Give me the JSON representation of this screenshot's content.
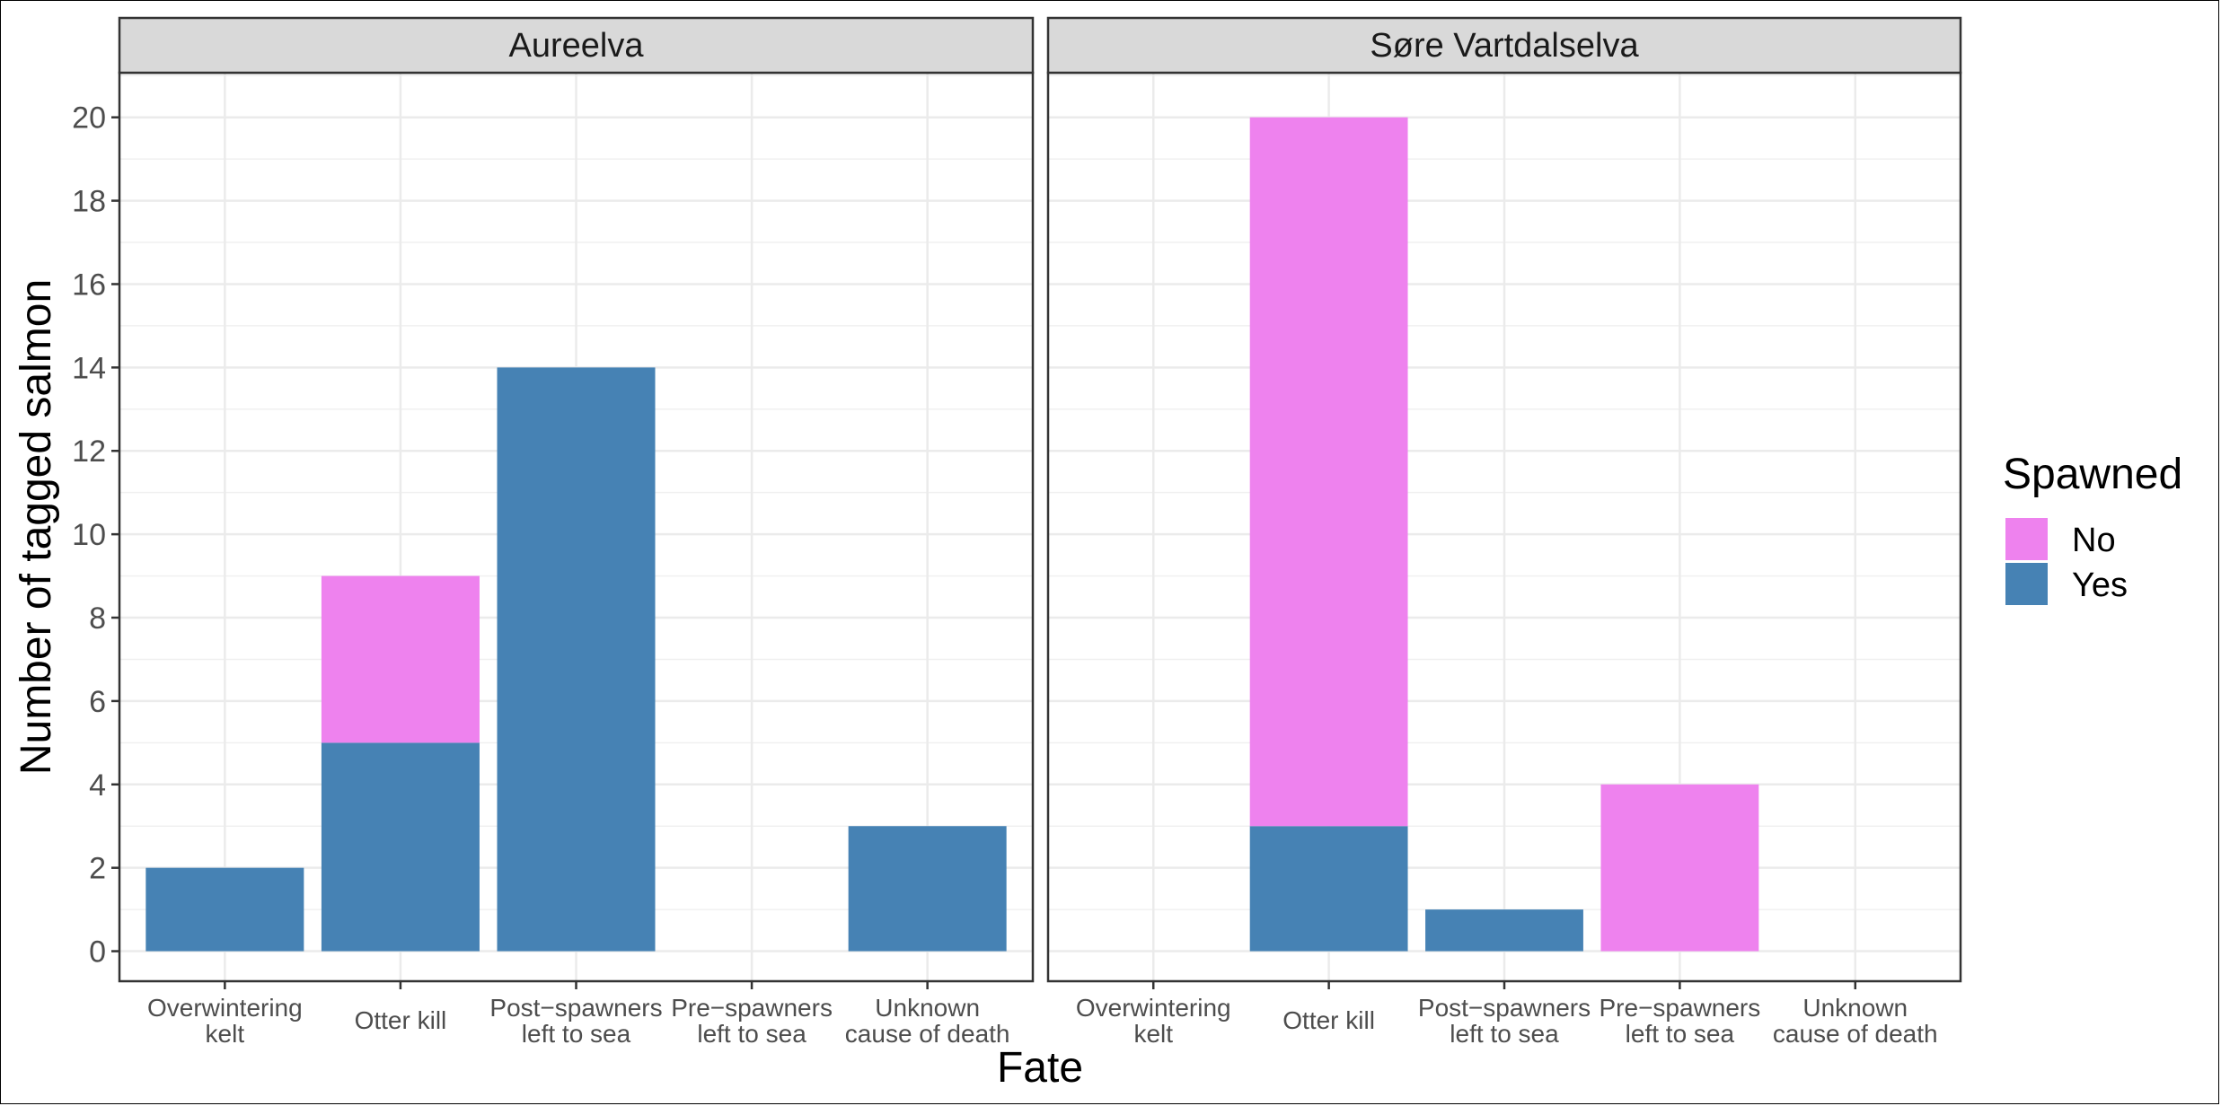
{
  "chart_data": {
    "type": "bar",
    "stacked": true,
    "xlabel": "Fate",
    "ylabel": "Number of tagged salmon",
    "ylim": [
      0,
      21
    ],
    "yticks": [
      0,
      2,
      4,
      6,
      8,
      10,
      12,
      14,
      16,
      18,
      20
    ],
    "grid": true,
    "categories": [
      [
        "Overwintering",
        "kelt"
      ],
      [
        "Otter kill"
      ],
      [
        "Post−spawners",
        "left to sea"
      ],
      [
        "Pre−spawners",
        "left to sea"
      ],
      [
        "Unknown",
        "cause of death"
      ]
    ],
    "legend": {
      "title": "Spawned",
      "position": "right",
      "items": [
        {
          "name": "No",
          "color": "#EE82EE"
        },
        {
          "name": "Yes",
          "color": "#4682B4"
        }
      ]
    },
    "panels": [
      {
        "title": "Aureelva",
        "series": [
          {
            "name": "Yes",
            "color": "#4682B4",
            "values": [
              2,
              5,
              14,
              0,
              3
            ]
          },
          {
            "name": "No",
            "color": "#EE82EE",
            "values": [
              0,
              4,
              0,
              0,
              0
            ]
          }
        ]
      },
      {
        "title": "Søre Vartdalselva",
        "series": [
          {
            "name": "Yes",
            "color": "#4682B4",
            "values": [
              0,
              3,
              1,
              0,
              0
            ]
          },
          {
            "name": "No",
            "color": "#EE82EE",
            "values": [
              0,
              17,
              0,
              4,
              0
            ]
          }
        ]
      }
    ]
  }
}
